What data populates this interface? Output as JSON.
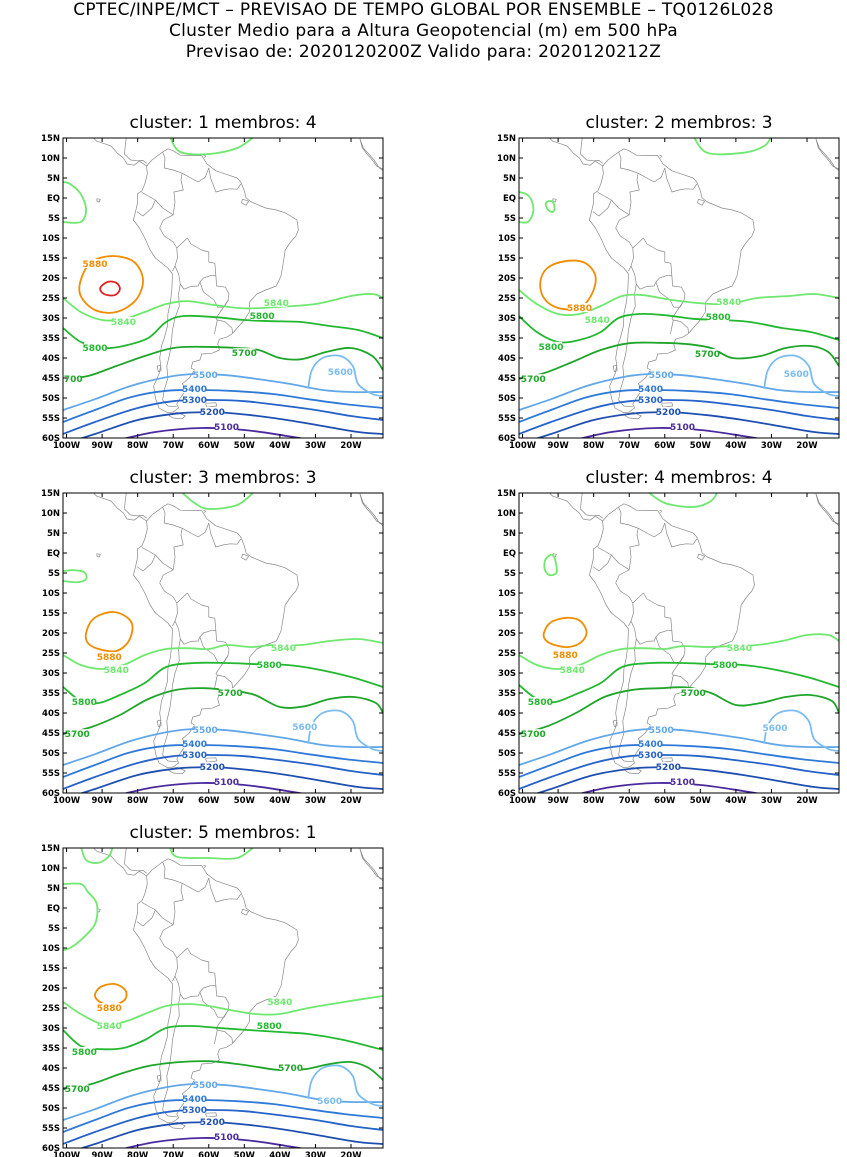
{
  "header": {
    "line1": "CPTEC/INPE/MCT – PREVISAO DE TEMPO GLOBAL POR ENSEMBLE – TQ0126L028",
    "line2": "Cluster Medio para a Altura Geopotencial (m) em 500 hPa",
    "line3": "Previsao de: 2020120200Z    Valido para: 2020120212Z"
  },
  "axes": {
    "lat_labels": [
      "15N",
      "10N",
      "5N",
      "EQ",
      "5S",
      "10S",
      "15S",
      "20S",
      "25S",
      "30S",
      "35S",
      "40S",
      "45S",
      "50S",
      "55S",
      "60S"
    ],
    "lon_labels": [
      "100W",
      "90W",
      "80W",
      "70W",
      "60W",
      "50W",
      "40W",
      "30W",
      "20W"
    ],
    "lon_values": [
      -100,
      -90,
      -80,
      -70,
      -60,
      -50,
      -40,
      -30,
      -20
    ],
    "lon_range": [
      -101,
      -11
    ],
    "lat_range": [
      -60,
      15
    ]
  },
  "colors": {
    "c5100": "#4b2a9e",
    "c5200": "#1e4fb0",
    "c5300": "#2563c8",
    "c5400": "#2f7ad8",
    "c5500": "#62a8e8",
    "c5600": "#7bbcf0",
    "c5700": "#1fa52a",
    "c5800": "#22b82f",
    "c5840": "#6ee86e",
    "c5880": "#f08c00",
    "c5920": "#e02020",
    "coast": "#888888"
  },
  "clusters": [
    {
      "title": "cluster: 1   membros: 4",
      "has_5920": true
    },
    {
      "title": "cluster: 2   membros: 3",
      "has_5920": false
    },
    {
      "title": "cluster: 3   membros: 3",
      "has_5920": false
    },
    {
      "title": "cluster: 4   membros: 4",
      "has_5920": false
    },
    {
      "title": "cluster: 5   membros: 1",
      "has_5920": false
    }
  ],
  "contour_labels": {
    "l5880": "5880",
    "l5840": "5840",
    "l5800": "5800",
    "l5700": "5700",
    "l5600": "5600",
    "l5500": "5500",
    "l5400": "5400",
    "l5300": "5300",
    "l5200": "5200",
    "l5100": "5100"
  }
}
